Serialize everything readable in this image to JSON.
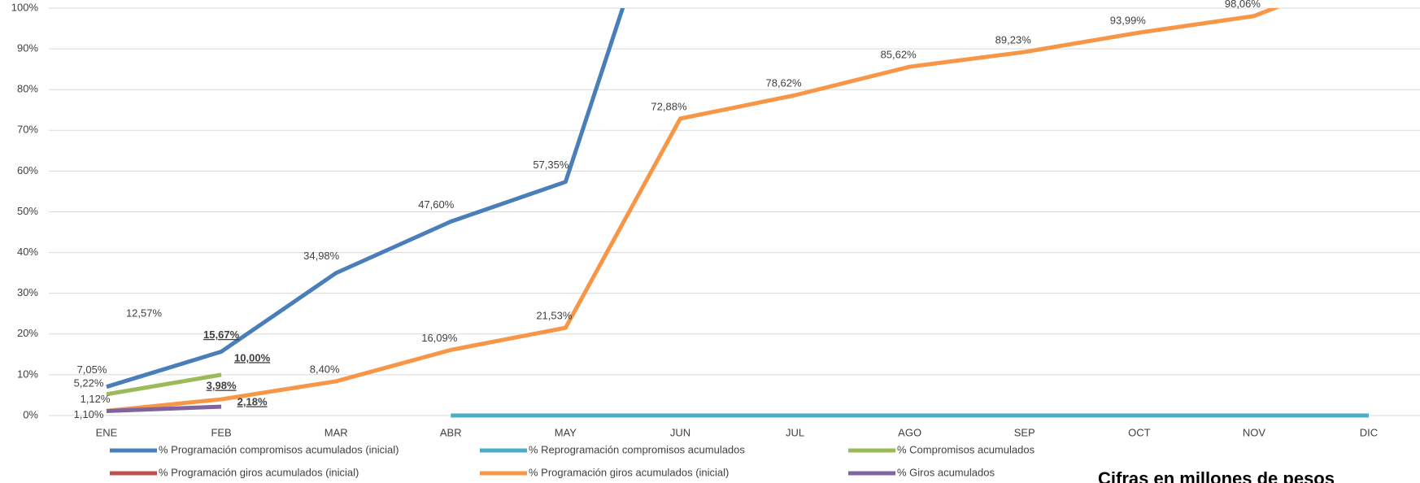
{
  "chart_data": {
    "type": "line",
    "categories": [
      "ENE",
      "FEB",
      "MAR",
      "ABR",
      "MAY",
      "JUN",
      "JUL",
      "AGO",
      "SEP",
      "OCT",
      "NOV",
      "DIC"
    ],
    "ylim": [
      0,
      100
    ],
    "yticks": [
      {
        "value": 0,
        "label": "0%"
      },
      {
        "value": 10,
        "label": "10%"
      },
      {
        "value": 20,
        "label": "20%"
      },
      {
        "value": 30,
        "label": "30%"
      },
      {
        "value": 40,
        "label": "40%"
      },
      {
        "value": 50,
        "label": "50%"
      },
      {
        "value": 60,
        "label": "60%"
      },
      {
        "value": 70,
        "label": "70%"
      },
      {
        "value": 80,
        "label": "80%"
      },
      {
        "value": 90,
        "label": "90%"
      },
      {
        "value": 100,
        "label": "100%"
      }
    ],
    "grid": true,
    "series": [
      {
        "name": "% Programación compromisos acumulados (inicial)",
        "color": "#4a7ebb",
        "values": [
          7.05,
          15.67,
          34.98,
          47.6,
          57.35,
          143,
          null,
          null,
          null,
          null,
          null,
          null
        ],
        "value_labels": [
          "7,05%",
          "15,67%",
          "34,98%",
          "47,60%",
          "57,35%",
          null,
          null,
          null,
          null,
          null,
          null,
          null
        ]
      },
      {
        "name": "% Reprogramación compromisos acumulados",
        "color": "#4bacc6",
        "values": [
          null,
          null,
          null,
          0,
          0,
          0,
          0,
          0,
          0,
          0,
          0,
          0
        ]
      },
      {
        "name": "% Compromisos acumulados",
        "color": "#9bbb59",
        "values": [
          5.22,
          10,
          null,
          null,
          null,
          null,
          null,
          null,
          null,
          null,
          null,
          null
        ],
        "value_labels": [
          "5,22%",
          "10,00%",
          null,
          null,
          null,
          null,
          null,
          null,
          null,
          null,
          null,
          null
        ]
      },
      {
        "name": "% Programación giros acumulados (inicial)",
        "color": "#c0504d",
        "values": [
          12.57,
          null,
          null,
          null,
          null,
          null,
          null,
          null,
          null,
          null,
          null,
          null
        ],
        "value_labels": [
          "12,57%",
          null,
          null,
          null,
          null,
          null,
          null,
          null,
          null,
          null,
          null,
          null
        ]
      },
      {
        "name": "% Programación giros acumulados (inicial)",
        "color": "#f79646",
        "values": [
          1.12,
          3.98,
          8.4,
          16.09,
          21.53,
          72.88,
          78.62,
          85.62,
          89.23,
          93.99,
          98.06,
          109
        ],
        "value_labels": [
          "1,12%",
          "3,98%",
          "8,40%",
          "16,09%",
          "21,53%",
          "72,88%",
          "78,62%",
          "85,62%",
          "89,23%",
          "93,99%",
          "98,06%",
          null
        ]
      },
      {
        "name": "% Giros acumulados",
        "color": "#8064a2",
        "values": [
          1.1,
          2.18,
          null,
          null,
          null,
          null,
          null,
          null,
          null,
          null,
          null,
          null
        ],
        "value_labels": [
          "1,10%",
          "2,18%",
          null,
          null,
          null,
          null,
          null,
          null,
          null,
          null,
          null,
          null
        ]
      }
    ],
    "annotation": "Cifras en millones de pesos"
  }
}
